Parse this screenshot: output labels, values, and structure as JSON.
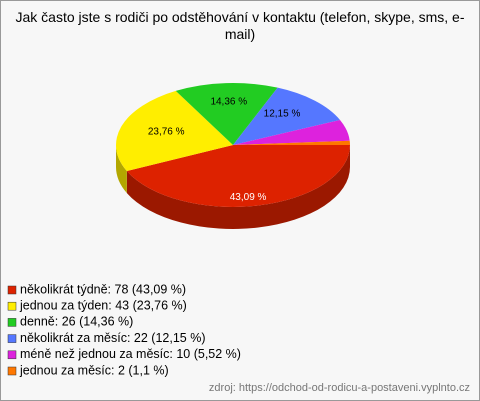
{
  "chart_data": {
    "type": "pie",
    "title": "Jak často jste s rodiči po odstěhování v kontaktu (telefon, skype, sms, e- mail)",
    "categories": [
      "několikrát týdně",
      "jednou za týden",
      "denně",
      "několikrát za měsíc",
      "méně než jednou za měsíc",
      "jednou za měsíc"
    ],
    "values": [
      43.09,
      23.76,
      14.36,
      12.15,
      5.52,
      1.1
    ],
    "value_labels": [
      "43,09 %",
      "23,76 %",
      "14,36 %",
      "12,15 %",
      null,
      null
    ],
    "legend_labels": [
      "několikrát týdně: 78 (43,09 %)",
      "jednou za týden: 43 (23,76 %)",
      "denně: 26 (14,36 %)",
      "několikrát za měsíc: 22 (12,15 %)",
      "méně než jednou za měsíc: 10 (5,52 %)",
      "jednou za měsíc: 2 (1,1 %)"
    ],
    "colors": [
      "#dd2200",
      "#ffee00",
      "#22cc22",
      "#5577ff",
      "#dd22dd",
      "#ff7700"
    ],
    "source": "zdroj: https://odchod-od-rodicu-a-postaveni.vyplnto.cz"
  }
}
